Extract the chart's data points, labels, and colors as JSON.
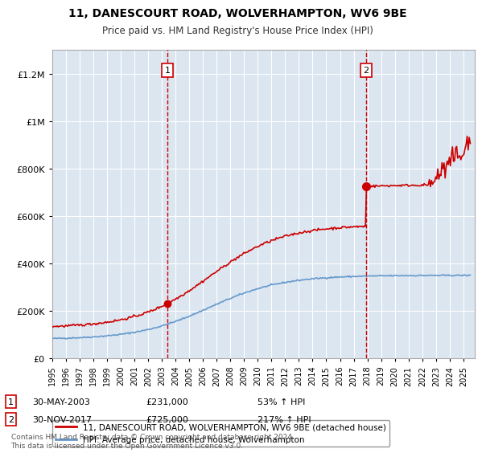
{
  "title1": "11, DANESCOURT ROAD, WOLVERHAMPTON, WV6 9BE",
  "title2": "Price paid vs. HM Land Registry's House Price Index (HPI)",
  "ytick_labels": [
    "£0",
    "£200K",
    "£400K",
    "£600K",
    "£800K",
    "£1M",
    "£1.2M"
  ],
  "ytick_values": [
    0,
    200000,
    400000,
    600000,
    800000,
    1000000,
    1200000
  ],
  "ylim": [
    0,
    1300000
  ],
  "xlim_start": 1995.0,
  "xlim_end": 2025.8,
  "background_color": "#dce6f1",
  "grid_color": "#ffffff",
  "hpi_color": "#6699cc",
  "price_color": "#cc0000",
  "marker1_x": 2003.41,
  "marker1_y": 231000,
  "marker2_x": 2017.91,
  "marker2_y": 725000,
  "legend_label1": "11, DANESCOURT ROAD, WOLVERHAMPTON, WV6 9BE (detached house)",
  "legend_label2": "HPI: Average price, detached house, Wolverhampton",
  "note1_date": "30-MAY-2003",
  "note1_price": "£231,000",
  "note1_hpi": "53% ↑ HPI",
  "note2_date": "30-NOV-2017",
  "note2_price": "£725,000",
  "note2_hpi": "217% ↑ HPI",
  "footer": "Contains HM Land Registry data © Crown copyright and database right 2024.\nThis data is licensed under the Open Government Licence v3.0."
}
